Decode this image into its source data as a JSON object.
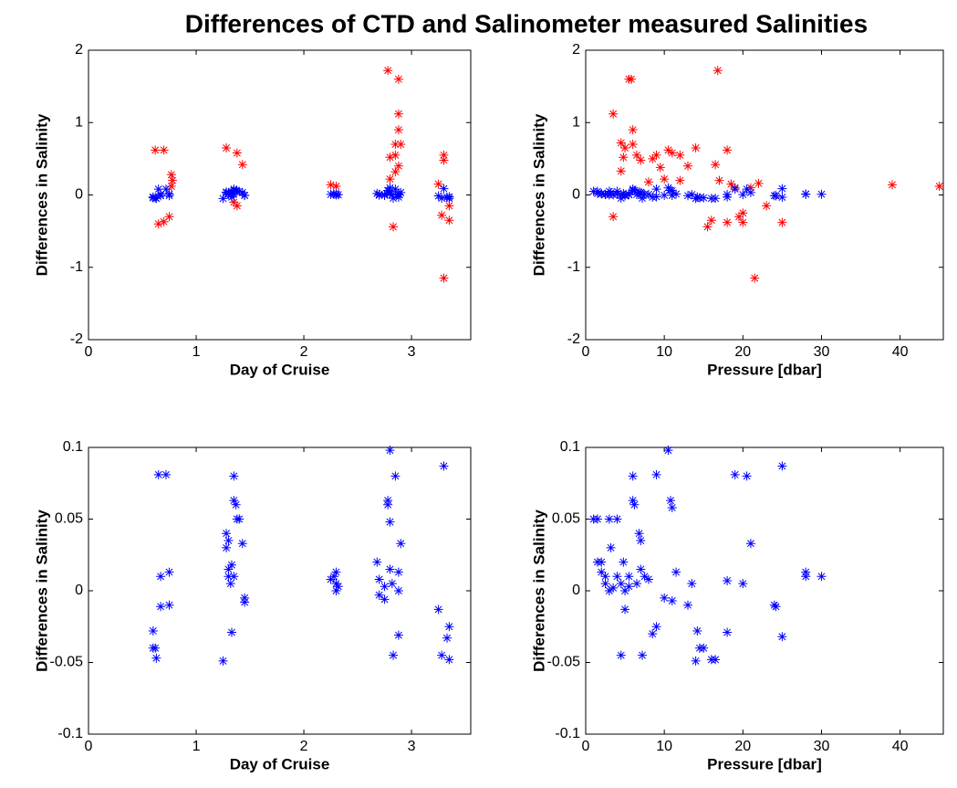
{
  "title": "Differences of CTD and Salinometer measured Salinities",
  "chart_data": [
    {
      "type": "scatter",
      "xlabel": "Day of Cruise",
      "ylabel": "Differences in Salinity",
      "xlim": [
        0,
        3.55
      ],
      "ylim": [
        -2,
        2
      ],
      "xticks": [
        0,
        1,
        2,
        3
      ],
      "yticks": [
        -2,
        -1,
        0,
        1,
        2
      ],
      "series": [
        {
          "color": "#ff0000",
          "x": [
            0.62,
            0.7,
            0.65,
            0.7,
            0.75,
            0.77,
            0.78,
            0.77,
            1.28,
            1.38,
            1.43,
            1.35,
            1.38,
            2.25,
            2.3,
            2.78,
            2.88,
            2.88,
            2.88,
            2.85,
            2.9,
            2.8,
            2.85,
            2.88,
            2.85,
            2.8,
            2.83,
            3.25,
            3.3,
            3.3,
            3.28,
            3.35,
            3.35,
            3.3
          ],
          "y": [
            0.62,
            0.62,
            -0.4,
            -0.37,
            -0.3,
            0.28,
            0.2,
            0.12,
            0.65,
            0.58,
            0.42,
            -0.1,
            -0.15,
            0.14,
            0.12,
            1.72,
            1.6,
            1.12,
            0.9,
            0.7,
            0.7,
            0.52,
            0.55,
            0.4,
            0.32,
            0.22,
            -0.44,
            0.15,
            0.55,
            0.48,
            -0.28,
            -0.35,
            -0.15,
            -1.15
          ]
        },
        {
          "color": "#0000ff",
          "x": [
            0.6,
            0.6,
            0.62,
            0.63,
            0.65,
            0.72,
            0.67,
            0.67,
            0.75,
            0.75,
            1.25,
            1.28,
            1.28,
            1.3,
            1.3,
            1.3,
            1.32,
            1.33,
            1.35,
            1.33,
            1.35,
            1.35,
            1.37,
            1.38,
            1.4,
            1.43,
            1.45,
            1.45,
            2.25,
            2.28,
            2.3,
            2.3,
            2.3,
            2.32,
            2.68,
            2.7,
            2.7,
            2.75,
            2.75,
            2.78,
            2.8,
            2.78,
            2.8,
            2.8,
            2.82,
            2.83,
            2.85,
            2.88,
            2.88,
            2.9,
            2.88,
            3.25,
            3.28,
            3.3,
            3.33,
            3.35,
            3.35
          ],
          "y": [
            -0.028,
            -0.04,
            -0.04,
            -0.047,
            0.081,
            0.081,
            0.01,
            -0.011,
            0.013,
            -0.01,
            -0.049,
            0.04,
            0.03,
            0.035,
            0.015,
            0.01,
            0.005,
            0.018,
            0.01,
            -0.029,
            0.08,
            0.063,
            0.06,
            0.05,
            0.05,
            0.033,
            -0.005,
            -0.008,
            0.008,
            0.01,
            0.005,
            0.0,
            0.013,
            0.003,
            0.02,
            0.008,
            -0.003,
            0.003,
            -0.006,
            0.06,
            0.098,
            0.063,
            0.048,
            0.015,
            0.005,
            -0.045,
            0.08,
            0.013,
            0.0,
            0.033,
            -0.031,
            -0.013,
            -0.045,
            0.087,
            -0.033,
            -0.025,
            -0.048
          ]
        }
      ]
    },
    {
      "type": "scatter",
      "xlabel": "Pressure [dbar]",
      "ylabel": "Differences in Salinity",
      "xlim": [
        0,
        45.5
      ],
      "ylim": [
        -2,
        2
      ],
      "xticks": [
        0,
        10,
        20,
        30,
        40
      ],
      "yticks": [
        -2,
        -1,
        0,
        1,
        2
      ],
      "series": [
        {
          "color": "#ff0000",
          "x": [
            3.5,
            3.5,
            4.5,
            4.5,
            4.8,
            5,
            5.5,
            5.8,
            6,
            6,
            6.5,
            7,
            8,
            8.5,
            9,
            9.5,
            10,
            10.5,
            11,
            12,
            12,
            13,
            14,
            15.5,
            16,
            16.5,
            16.8,
            17,
            18,
            18,
            18.5,
            19,
            19.5,
            20,
            20,
            21,
            21.5,
            22,
            23,
            25,
            39,
            45
          ],
          "y": [
            1.12,
            -0.3,
            0.72,
            0.33,
            0.52,
            0.65,
            1.6,
            1.6,
            0.9,
            0.7,
            0.55,
            0.48,
            0.18,
            0.5,
            0.55,
            0.38,
            0.22,
            0.62,
            0.58,
            0.55,
            0.2,
            0.4,
            0.65,
            -0.44,
            -0.35,
            0.42,
            1.72,
            0.2,
            0.62,
            -0.38,
            0.15,
            0.1,
            -0.3,
            -0.38,
            -0.25,
            0.1,
            -1.15,
            0.16,
            -0.15,
            -0.38,
            0.14,
            0.12
          ]
        },
        {
          "color": "#0000ff",
          "x": [
            1,
            1.5,
            1.5,
            2,
            2,
            2.5,
            2.5,
            3,
            3,
            3.2,
            3.5,
            4,
            4,
            4.5,
            4.5,
            4.8,
            5,
            5,
            5.5,
            5.5,
            6,
            6,
            6.2,
            6.5,
            6.8,
            7,
            7,
            7.2,
            7.5,
            8,
            8.5,
            9,
            9,
            10,
            10.5,
            10.8,
            11,
            11,
            11.5,
            13,
            13.5,
            14,
            14.2,
            14.5,
            15,
            16,
            16.5,
            18,
            18,
            19,
            20,
            20.5,
            21,
            24,
            24.2,
            25,
            25,
            28,
            28,
            30
          ],
          "y": [
            0.05,
            0.05,
            0.02,
            0.02,
            0.013,
            0.01,
            0.005,
            0.05,
            0.0,
            0.03,
            0.002,
            0.05,
            0.01,
            0.005,
            -0.045,
            0.02,
            0.0,
            -0.013,
            0.01,
            0.003,
            0.08,
            0.063,
            0.06,
            0.005,
            0.04,
            0.035,
            0.015,
            -0.045,
            0.01,
            0.008,
            -0.03,
            0.081,
            -0.025,
            -0.005,
            0.098,
            0.063,
            0.058,
            -0.007,
            0.013,
            -0.01,
            0.005,
            -0.049,
            -0.028,
            -0.04,
            -0.04,
            -0.048,
            -0.048,
            0.007,
            -0.029,
            0.081,
            0.005,
            0.08,
            0.033,
            -0.01,
            -0.011,
            0.087,
            -0.032,
            0.013,
            0.01,
            0.01
          ]
        }
      ]
    },
    {
      "type": "scatter",
      "xlabel": "Day of Cruise",
      "ylabel": "Differences in Salinity",
      "xlim": [
        0,
        3.55
      ],
      "ylim": [
        -0.1,
        0.1
      ],
      "xticks": [
        0,
        1,
        2,
        3
      ],
      "yticks": [
        -0.1,
        -0.05,
        0,
        0.05,
        0.1
      ],
      "series": [
        {
          "color": "#0000ff",
          "x": [
            0.6,
            0.6,
            0.62,
            0.63,
            0.65,
            0.72,
            0.67,
            0.67,
            0.75,
            0.75,
            1.25,
            1.28,
            1.28,
            1.3,
            1.3,
            1.3,
            1.32,
            1.33,
            1.35,
            1.33,
            1.35,
            1.35,
            1.37,
            1.38,
            1.4,
            1.43,
            1.45,
            1.45,
            2.25,
            2.28,
            2.3,
            2.3,
            2.3,
            2.32,
            2.68,
            2.7,
            2.7,
            2.75,
            2.75,
            2.78,
            2.8,
            2.78,
            2.8,
            2.8,
            2.82,
            2.83,
            2.85,
            2.88,
            2.88,
            2.9,
            2.88,
            3.25,
            3.28,
            3.3,
            3.33,
            3.35,
            3.35
          ],
          "y": [
            -0.028,
            -0.04,
            -0.04,
            -0.047,
            0.081,
            0.081,
            0.01,
            -0.011,
            0.013,
            -0.01,
            -0.049,
            0.04,
            0.03,
            0.035,
            0.015,
            0.01,
            0.005,
            0.018,
            0.01,
            -0.029,
            0.08,
            0.063,
            0.06,
            0.05,
            0.05,
            0.033,
            -0.005,
            -0.008,
            0.008,
            0.01,
            0.005,
            0.0,
            0.013,
            0.003,
            0.02,
            0.008,
            -0.003,
            0.003,
            -0.006,
            0.06,
            0.098,
            0.063,
            0.048,
            0.015,
            0.005,
            -0.045,
            0.08,
            0.013,
            0.0,
            0.033,
            -0.031,
            -0.013,
            -0.045,
            0.087,
            -0.033,
            -0.025,
            -0.048
          ]
        }
      ]
    },
    {
      "type": "scatter",
      "xlabel": "Pressure [dbar]",
      "ylabel": "Differences in Salinity",
      "xlim": [
        0,
        45.5
      ],
      "ylim": [
        -0.1,
        0.1
      ],
      "xticks": [
        0,
        10,
        20,
        30,
        40
      ],
      "yticks": [
        -0.1,
        -0.05,
        0,
        0.05,
        0.1
      ],
      "series": [
        {
          "color": "#0000ff",
          "x": [
            1,
            1.5,
            1.5,
            2,
            2,
            2.5,
            2.5,
            3,
            3,
            3.2,
            3.5,
            4,
            4,
            4.5,
            4.5,
            4.8,
            5,
            5,
            5.5,
            5.5,
            6,
            6,
            6.2,
            6.5,
            6.8,
            7,
            7,
            7.2,
            7.5,
            8,
            8.5,
            9,
            9,
            10,
            10.5,
            10.8,
            11,
            11,
            11.5,
            13,
            13.5,
            14,
            14.2,
            14.5,
            15,
            16,
            16.5,
            18,
            18,
            19,
            20,
            20.5,
            21,
            24,
            24.2,
            25,
            25,
            28,
            28,
            30
          ],
          "y": [
            0.05,
            0.05,
            0.02,
            0.02,
            0.013,
            0.01,
            0.005,
            0.05,
            0.0,
            0.03,
            0.002,
            0.05,
            0.01,
            0.005,
            -0.045,
            0.02,
            0.0,
            -0.013,
            0.01,
            0.003,
            0.08,
            0.063,
            0.06,
            0.005,
            0.04,
            0.035,
            0.015,
            -0.045,
            0.01,
            0.008,
            -0.03,
            0.081,
            -0.025,
            -0.005,
            0.098,
            0.063,
            0.058,
            -0.007,
            0.013,
            -0.01,
            0.005,
            -0.049,
            -0.028,
            -0.04,
            -0.04,
            -0.048,
            -0.048,
            0.007,
            -0.029,
            0.081,
            0.005,
            0.08,
            0.033,
            -0.01,
            -0.011,
            0.087,
            -0.032,
            0.013,
            0.01,
            0.01
          ]
        }
      ]
    }
  ]
}
